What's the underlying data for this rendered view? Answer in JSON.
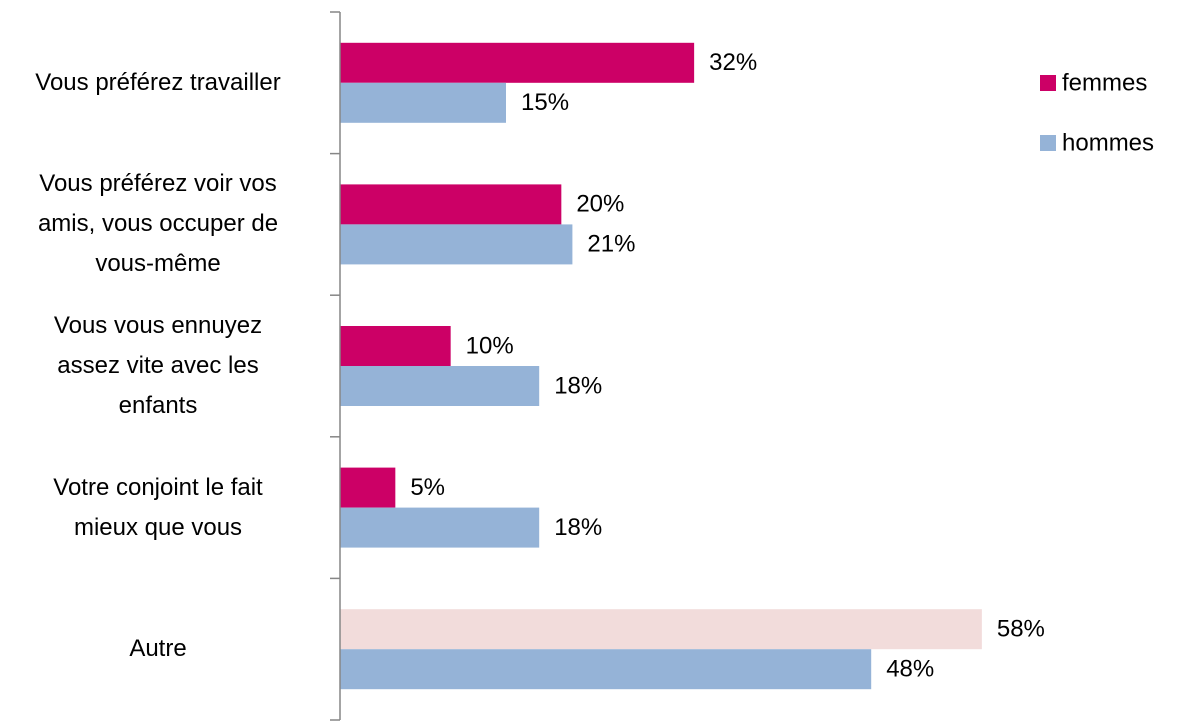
{
  "chart_data": {
    "type": "hbar",
    "categories": [
      "Vous préférez travailler",
      "Vous préférez voir vos\namis, vous occuper de\nvous-même",
      "Vous vous ennuyez\nassez vite avec les\nenfants",
      "Votre conjoint le fait\nmieux que vous",
      "Autre"
    ],
    "series": [
      {
        "name": "femmes",
        "color": "#cc0066",
        "colors": [
          "#cc0066",
          "#cc0066",
          "#cc0066",
          "#cc0066",
          "#f2dcdb"
        ],
        "values": [
          32,
          20,
          10,
          5,
          58
        ],
        "value_labels": [
          "32%",
          "20%",
          "10%",
          "5%",
          "58%"
        ]
      },
      {
        "name": "hommes",
        "color": "#95b3d7",
        "values": [
          15,
          21,
          18,
          18,
          48
        ],
        "value_labels": [
          "15%",
          "21%",
          "18%",
          "18%",
          "48%"
        ]
      }
    ],
    "xlim": [
      0,
      60
    ],
    "legend": "top-right"
  }
}
